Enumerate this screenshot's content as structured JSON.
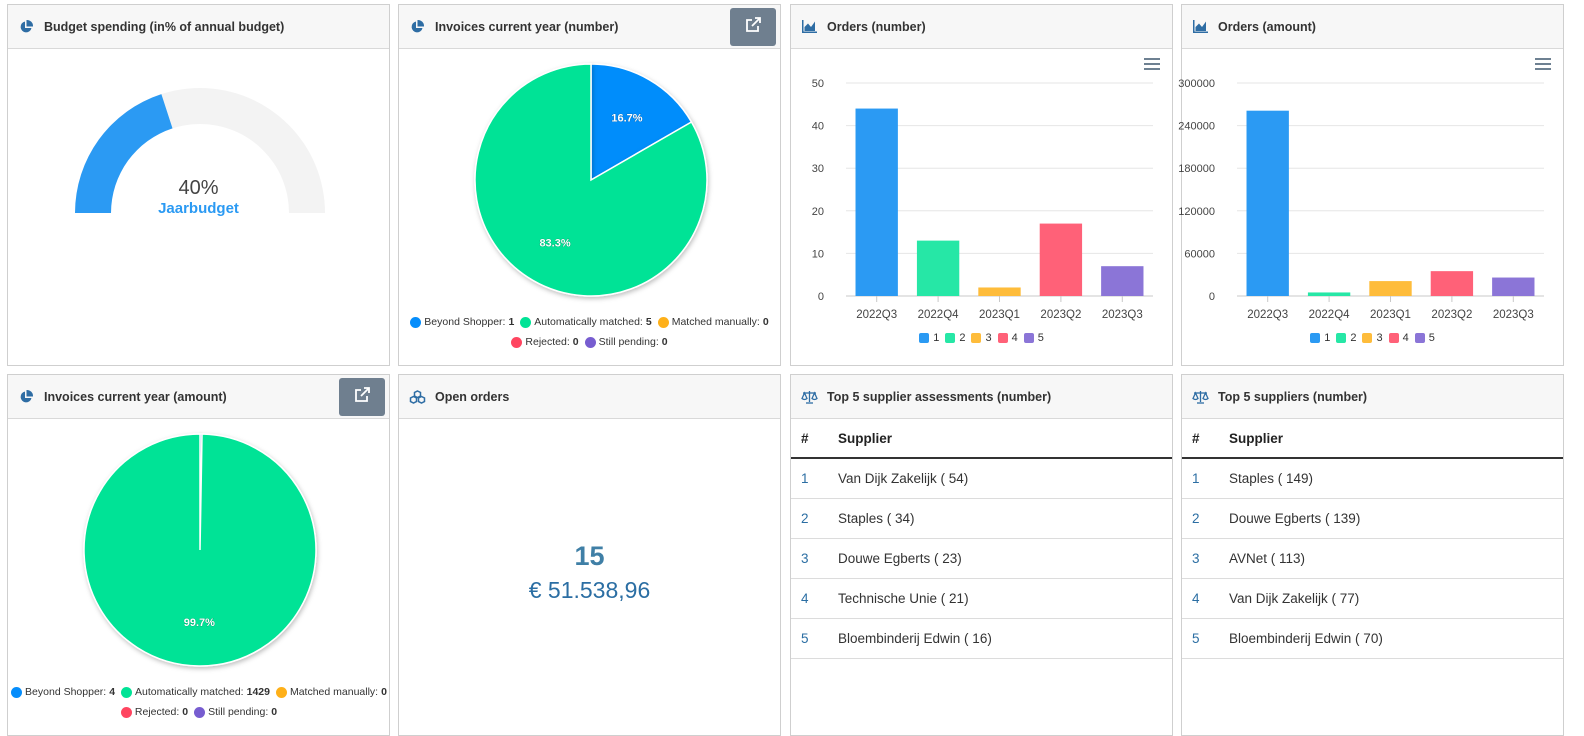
{
  "budget": {
    "title": "Budget spending (in% of annual budget)",
    "value_percent": 40,
    "value_label": "40%",
    "sublabel": "Jaarbudget",
    "colors": {
      "fill": "#2b9af3",
      "track": "#f3f3f3"
    }
  },
  "invoices_number": {
    "title": "Invoices current year (number)",
    "slices": [
      {
        "name": "Beyond Shopper",
        "value": 1,
        "label": "16.7%",
        "color": "#058dfb"
      },
      {
        "name": "Automatically matched",
        "value": 5,
        "label": "83.3%",
        "color": "#00e396"
      },
      {
        "name": "Matched manually",
        "value": 0,
        "label": "",
        "color": "#feb019"
      },
      {
        "name": "Rejected",
        "value": 0,
        "label": "",
        "color": "#ff4560"
      },
      {
        "name": "Still pending",
        "value": 0,
        "label": "",
        "color": "#775dd0"
      }
    ],
    "legend_values": [
      "1",
      "5",
      "0",
      "0",
      "0"
    ]
  },
  "invoices_amount": {
    "title": "Invoices current year (amount)",
    "slices": [
      {
        "name": "Beyond Shopper",
        "value": 4,
        "label": "",
        "color": "#058dfb"
      },
      {
        "name": "Automatically matched",
        "value": 1429,
        "label": "99.7%",
        "color": "#00e396"
      },
      {
        "name": "Matched manually",
        "value": 0,
        "label": "",
        "color": "#feb019"
      },
      {
        "name": "Rejected",
        "value": 0,
        "label": "",
        "color": "#ff4560"
      },
      {
        "name": "Still pending",
        "value": 0,
        "label": "",
        "color": "#775dd0"
      }
    ],
    "legend_values": [
      "4",
      "1429",
      "0",
      "0",
      "0"
    ]
  },
  "orders_number": {
    "title": "Orders (number)",
    "chart_data": {
      "type": "bar",
      "categories": [
        "2022Q3",
        "2022Q4",
        "2023Q1",
        "2023Q2",
        "2023Q3"
      ],
      "values": [
        44,
        13,
        2,
        17,
        7
      ],
      "ylim": [
        0,
        50
      ],
      "yticks": [
        "0",
        "10",
        "20",
        "30",
        "40",
        "50"
      ],
      "grid": true,
      "legend": [
        "1",
        "2",
        "3",
        "4",
        "5"
      ],
      "legend_position": "bottom",
      "colors": [
        "#2b9af3",
        "#26e7a6",
        "#febc3b",
        "#ff6178",
        "#8b75d7"
      ]
    }
  },
  "orders_amount": {
    "title": "Orders (amount)",
    "chart_data": {
      "type": "bar",
      "categories": [
        "2022Q3",
        "2022Q4",
        "2023Q1",
        "2023Q2",
        "2023Q3"
      ],
      "values": [
        261000,
        5000,
        21000,
        35000,
        26000
      ],
      "ylim": [
        0,
        300000
      ],
      "yticks": [
        "0",
        "60000",
        "120000",
        "180000",
        "240000",
        "300000"
      ],
      "grid": true,
      "legend": [
        "1",
        "2",
        "3",
        "4",
        "5"
      ],
      "legend_position": "bottom",
      "colors": [
        "#2b9af3",
        "#26e7a6",
        "#febc3b",
        "#ff6178",
        "#8b75d7"
      ]
    }
  },
  "open_orders": {
    "title": "Open orders",
    "count": "15",
    "amount": "€ 51.538,96"
  },
  "top_assessments": {
    "title": "Top 5 supplier assessments (number)",
    "col_rank": "#",
    "col_supplier": "Supplier",
    "rows": [
      {
        "rank": "1",
        "supplier": "Van Dijk Zakelijk ( 54)"
      },
      {
        "rank": "2",
        "supplier": "Staples ( 34)"
      },
      {
        "rank": "3",
        "supplier": "Douwe Egberts ( 23)"
      },
      {
        "rank": "4",
        "supplier": "Technische Unie ( 21)"
      },
      {
        "rank": "5",
        "supplier": "Bloembinderij Edwin ( 16)"
      }
    ]
  },
  "top_suppliers": {
    "title": "Top 5 suppliers (number)",
    "col_rank": "#",
    "col_supplier": "Supplier",
    "rows": [
      {
        "rank": "1",
        "supplier": "Staples ( 149)"
      },
      {
        "rank": "2",
        "supplier": "Douwe Egberts ( 139)"
      },
      {
        "rank": "3",
        "supplier": "AVNet ( 113)"
      },
      {
        "rank": "4",
        "supplier": "Van Dijk Zakelijk ( 77)"
      },
      {
        "rank": "5",
        "supplier": "Bloembinderij Edwin ( 70)"
      }
    ]
  },
  "icons": {
    "pie": "pie-chart-icon",
    "area": "area-chart-icon",
    "cubes": "cubes-icon",
    "scale": "balance-scale-icon",
    "popout": "external-link-icon",
    "menu": "hamburger-menu-icon"
  },
  "colors": {
    "header_icon": "#2e6da4",
    "accent_text": "#2b6ea3"
  }
}
